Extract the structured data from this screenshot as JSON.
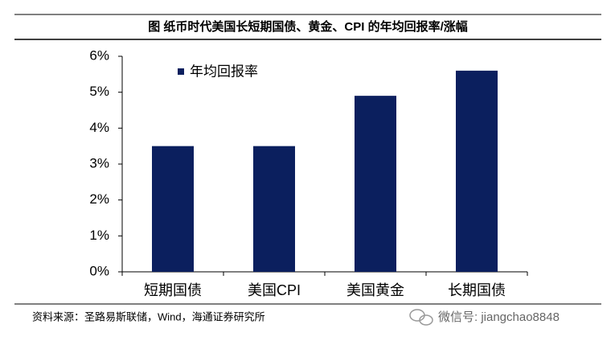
{
  "chart_data": {
    "type": "bar",
    "title": "图  纸币时代美国长短期国债、黄金、CPI 的年均回报率/涨幅",
    "categories": [
      "短期国债",
      "美国CPI",
      "美国黄金",
      "长期国债"
    ],
    "series": [
      {
        "name": "年均回报率",
        "color": "#0b1f5e",
        "values": [
          3.5,
          3.5,
          4.9,
          5.6
        ]
      }
    ],
    "ylim": [
      0,
      6
    ],
    "yticks": [
      {
        "value": 0,
        "label": "0%"
      },
      {
        "value": 1,
        "label": "1%"
      },
      {
        "value": 2,
        "label": "2%"
      },
      {
        "value": 3,
        "label": "3%"
      },
      {
        "value": 4,
        "label": "4%"
      },
      {
        "value": 5,
        "label": "5%"
      },
      {
        "value": 6,
        "label": "6%"
      }
    ],
    "grid": false,
    "source": "资料来源：圣路易斯联储，Wind，海通证券研究所",
    "watermark": "微信号: jiangchao8848"
  }
}
